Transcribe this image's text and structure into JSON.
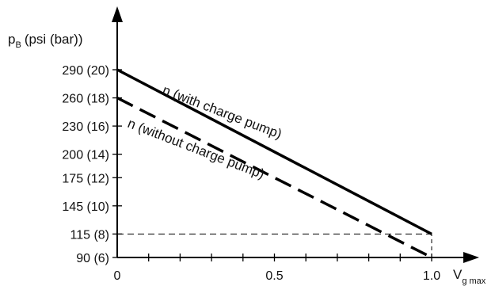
{
  "chart_data": {
    "type": "line",
    "ylabel": "p",
    "ylabel_sub": "B",
    "ylabel_unit": "(psi (bar))",
    "xlabel": "V",
    "xlabel_sub": "g max",
    "xlim": [
      0,
      1.0
    ],
    "ylim": [
      90,
      290
    ],
    "x_ticks": [
      {
        "value": 0,
        "label": "0"
      },
      {
        "value": 0.5,
        "label": "0.5"
      },
      {
        "value": 1.0,
        "label": "1.0"
      }
    ],
    "y_ticks": [
      {
        "value": 290,
        "label": "290 (20)"
      },
      {
        "value": 260,
        "label": "260 (18)"
      },
      {
        "value": 230,
        "label": "230 (16)"
      },
      {
        "value": 200,
        "label": "200 (14)"
      },
      {
        "value": 175,
        "label": "175 (12)"
      },
      {
        "value": 145,
        "label": "145 (10)"
      },
      {
        "value": 115,
        "label": "115 (8)"
      },
      {
        "value": 90,
        "label": "90 (6)"
      }
    ],
    "series": [
      {
        "name": "n (with charge pump)",
        "style": "solid",
        "color": "#000000",
        "points": [
          [
            0,
            290
          ],
          [
            1.0,
            115
          ]
        ]
      },
      {
        "name": "n (without charge pump)",
        "style": "dashed",
        "color": "#000000",
        "points": [
          [
            0,
            260
          ],
          [
            1.0,
            90
          ]
        ]
      }
    ],
    "reference_lines": [
      {
        "type": "horizontal",
        "y": 115,
        "x_from": 0,
        "x_to": 1.0,
        "style": "dashed"
      },
      {
        "type": "vertical",
        "x": 1.0,
        "y_from": 90,
        "y_to": 115,
        "style": "dashed"
      }
    ],
    "grid": false
  }
}
